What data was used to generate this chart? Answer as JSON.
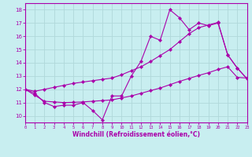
{
  "xlabel": "Windchill (Refroidissement éolien,°C)",
  "background_color": "#c8eef0",
  "grid_color": "#b0d8da",
  "line_color": "#aa00aa",
  "x_data": [
    0,
    1,
    2,
    3,
    4,
    5,
    6,
    7,
    8,
    9,
    10,
    11,
    12,
    13,
    14,
    15,
    16,
    17,
    18,
    19,
    20,
    21,
    22,
    23
  ],
  "y_zigzag": [
    12.0,
    11.7,
    11.0,
    10.7,
    10.8,
    10.8,
    11.0,
    10.4,
    9.7,
    11.5,
    11.5,
    13.0,
    14.1,
    16.0,
    15.7,
    18.0,
    17.4,
    16.5,
    17.0,
    16.8,
    17.0,
    14.6,
    13.6,
    12.8
  ],
  "y_upper": [
    12.0,
    11.85,
    12.0,
    12.15,
    12.3,
    12.45,
    12.55,
    12.65,
    12.75,
    12.85,
    13.1,
    13.4,
    13.7,
    14.1,
    14.55,
    15.0,
    15.6,
    16.2,
    16.65,
    16.85,
    17.05,
    14.6,
    13.6,
    12.8
  ],
  "y_lower": [
    12.0,
    11.55,
    11.1,
    11.05,
    11.0,
    11.02,
    11.05,
    11.1,
    11.15,
    11.2,
    11.35,
    11.5,
    11.7,
    11.9,
    12.1,
    12.35,
    12.6,
    12.82,
    13.05,
    13.25,
    13.5,
    13.7,
    12.9,
    12.85
  ],
  "xlim": [
    0,
    23
  ],
  "ylim": [
    9.5,
    18.5
  ],
  "yticks": [
    10,
    11,
    12,
    13,
    14,
    15,
    16,
    17,
    18
  ],
  "xticks": [
    0,
    1,
    2,
    3,
    4,
    5,
    6,
    7,
    8,
    9,
    10,
    11,
    12,
    13,
    14,
    15,
    16,
    17,
    18,
    19,
    20,
    21,
    22,
    23
  ]
}
